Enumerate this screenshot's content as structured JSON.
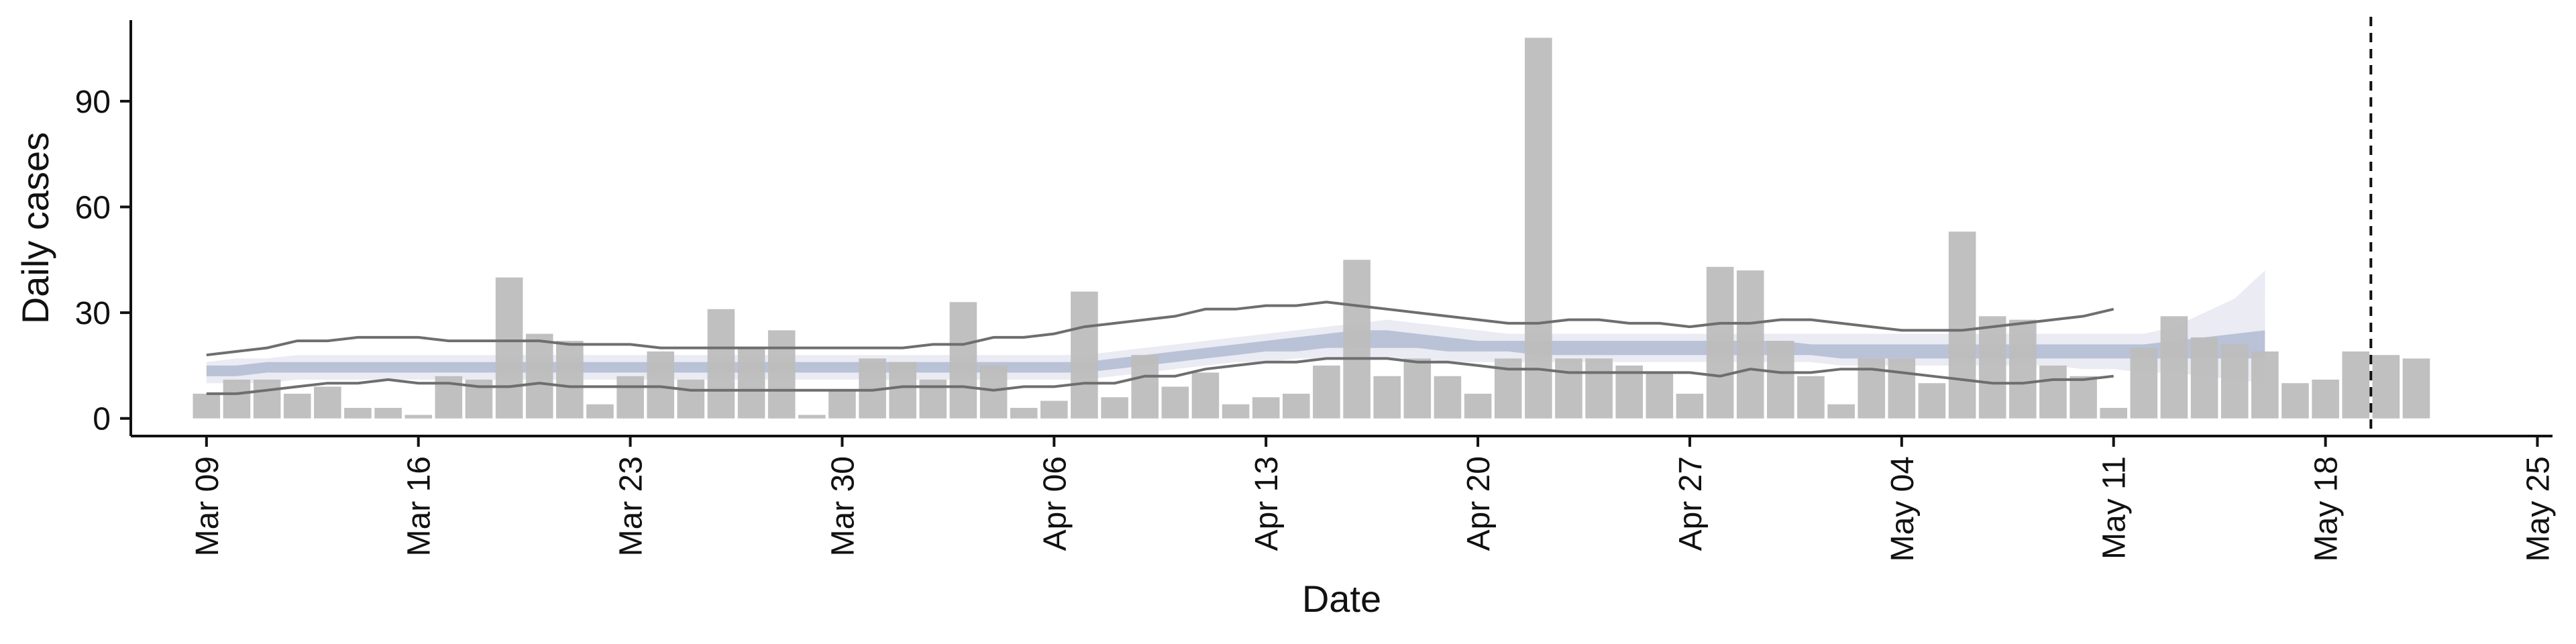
{
  "chart_data": {
    "type": "bar",
    "xlabel": "Date",
    "ylabel": "Daily cases",
    "yticks": [
      0,
      30,
      60,
      90
    ],
    "ylim": [
      -5,
      113
    ],
    "x_range_days": [
      -2.5,
      77.5
    ],
    "x_start_date": "Mar 09",
    "xticks": [
      {
        "day": 0,
        "label": "Mar 09"
      },
      {
        "day": 7,
        "label": "Mar 16"
      },
      {
        "day": 14,
        "label": "Mar 23"
      },
      {
        "day": 21,
        "label": "Mar 30"
      },
      {
        "day": 28,
        "label": "Apr 06"
      },
      {
        "day": 35,
        "label": "Apr 13"
      },
      {
        "day": 42,
        "label": "Apr 20"
      },
      {
        "day": 49,
        "label": "Apr 27"
      },
      {
        "day": 56,
        "label": "May 04"
      },
      {
        "day": 63,
        "label": "May 11"
      },
      {
        "day": 70,
        "label": "May 18"
      },
      {
        "day": 77,
        "label": "May 25"
      }
    ],
    "cases": [
      7,
      11,
      11,
      7,
      9,
      3,
      3,
      1,
      12,
      11,
      40,
      24,
      22,
      4,
      12,
      19,
      11,
      31,
      20,
      25,
      1,
      8,
      17,
      16,
      11,
      33,
      15,
      3,
      5,
      36,
      6,
      18,
      9,
      13,
      4,
      6,
      7,
      15,
      45,
      12,
      17,
      12,
      7,
      17,
      108,
      17,
      17,
      15,
      13,
      7,
      43,
      42,
      22,
      12,
      4,
      17,
      17,
      10,
      53,
      29,
      28,
      15,
      12,
      3,
      20,
      29,
      23,
      21,
      19,
      10,
      11,
      19,
      18,
      17
    ],
    "band_outer_upper": [
      16,
      17,
      17,
      18,
      18,
      18,
      18,
      18,
      18,
      18,
      18,
      18,
      18,
      18,
      18,
      18,
      18,
      18,
      18,
      18,
      18,
      18,
      18,
      18,
      18,
      18,
      18,
      18,
      18,
      18,
      19,
      20,
      21,
      22,
      23,
      24,
      25,
      26,
      27,
      28,
      27,
      26,
      25,
      24,
      24,
      24,
      24,
      24,
      24,
      24,
      24,
      24,
      24,
      24,
      24,
      24,
      24,
      24,
      24,
      24,
      24,
      24,
      24,
      24,
      24,
      26,
      30,
      34,
      42
    ],
    "band_outer_lower": [
      10,
      10,
      10,
      11,
      11,
      11,
      11,
      11,
      11,
      11,
      11,
      11,
      11,
      11,
      11,
      11,
      11,
      11,
      11,
      11,
      11,
      11,
      11,
      11,
      11,
      11,
      11,
      11,
      11,
      11,
      12,
      13,
      14,
      15,
      16,
      16,
      17,
      17,
      17,
      17,
      17,
      16,
      16,
      16,
      16,
      16,
      16,
      16,
      16,
      16,
      16,
      16,
      16,
      16,
      15,
      15,
      15,
      15,
      15,
      15,
      15,
      15,
      14,
      14,
      13,
      13,
      12,
      11,
      10
    ],
    "band_inner_upper": [
      15,
      15,
      16,
      16,
      16,
      16,
      16,
      16,
      16,
      16,
      16,
      16,
      16,
      16,
      16,
      16,
      16,
      16,
      16,
      16,
      16,
      16,
      16,
      16,
      16,
      16,
      16,
      16,
      16,
      16,
      17,
      18,
      19,
      20,
      21,
      22,
      23,
      24,
      25,
      25,
      24,
      23,
      22,
      22,
      22,
      22,
      22,
      22,
      22,
      22,
      22,
      22,
      22,
      21,
      21,
      21,
      21,
      21,
      21,
      21,
      21,
      21,
      21,
      21,
      21,
      22,
      23,
      24,
      25
    ],
    "band_inner_lower": [
      12,
      12,
      13,
      13,
      13,
      13,
      13,
      13,
      13,
      13,
      13,
      13,
      13,
      13,
      13,
      13,
      13,
      13,
      13,
      13,
      13,
      13,
      13,
      13,
      13,
      13,
      13,
      13,
      13,
      13,
      14,
      15,
      16,
      17,
      18,
      19,
      19,
      20,
      20,
      20,
      20,
      19,
      19,
      19,
      18,
      18,
      18,
      18,
      18,
      18,
      18,
      18,
      18,
      18,
      17,
      17,
      17,
      17,
      17,
      17,
      17,
      17,
      17,
      17,
      17,
      17,
      17,
      17,
      17
    ],
    "line_upper": [
      18,
      19,
      20,
      22,
      22,
      23,
      23,
      23,
      22,
      22,
      22,
      22,
      21,
      21,
      21,
      20,
      20,
      20,
      20,
      20,
      20,
      20,
      20,
      20,
      21,
      21,
      23,
      23,
      24,
      26,
      27,
      28,
      29,
      31,
      31,
      32,
      32,
      33,
      32,
      31,
      30,
      29,
      28,
      27,
      27,
      28,
      28,
      27,
      27,
      26,
      27,
      27,
      28,
      28,
      27,
      26,
      25,
      25,
      25,
      26,
      27,
      28,
      29,
      31
    ],
    "line_lower": [
      7,
      7,
      8,
      9,
      10,
      10,
      11,
      10,
      10,
      9,
      9,
      10,
      9,
      9,
      9,
      9,
      8,
      8,
      8,
      8,
      8,
      8,
      8,
      9,
      9,
      9,
      8,
      9,
      9,
      10,
      10,
      12,
      12,
      14,
      15,
      16,
      16,
      17,
      17,
      17,
      16,
      16,
      15,
      14,
      14,
      13,
      13,
      13,
      13,
      13,
      12,
      14,
      13,
      13,
      14,
      14,
      13,
      12,
      11,
      10,
      10,
      11,
      11,
      12
    ]
  },
  "reference_line": {
    "day": 71.5,
    "style": "dashed"
  },
  "colors": {
    "bar": "#bdbdbd",
    "band_outer": "#e6e8f1",
    "band_inner": "#a8b4cc",
    "line": "#6e6e6e",
    "axis": "#111111"
  }
}
